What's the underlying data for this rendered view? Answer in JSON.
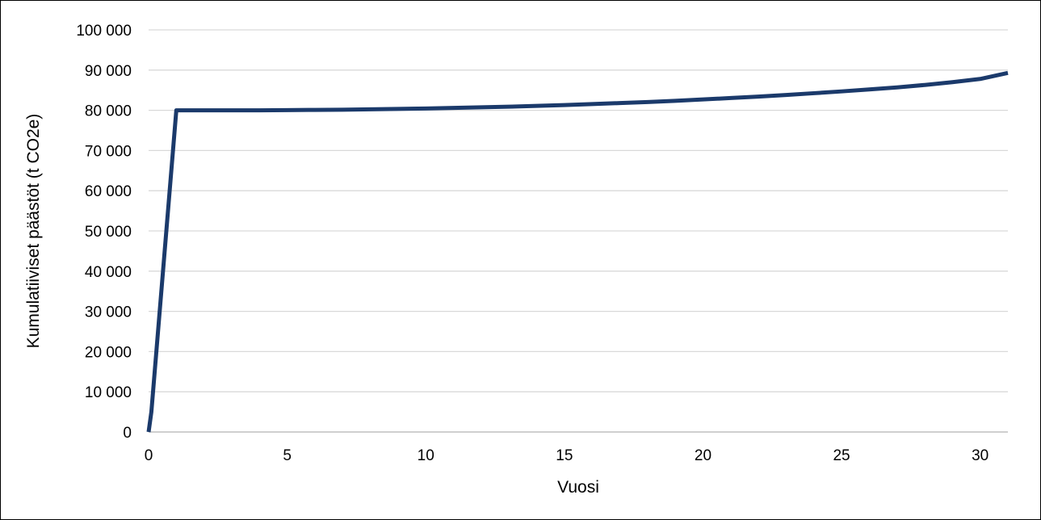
{
  "chart_data": {
    "type": "line",
    "title": "",
    "xlabel": "Vuosi",
    "ylabel": "Kumulatiiviset päästöt (t CO2e)",
    "xlim": [
      0,
      31
    ],
    "ylim": [
      0,
      100000
    ],
    "x_ticks": [
      0,
      5,
      10,
      15,
      20,
      25,
      30
    ],
    "x_tick_labels": [
      "0",
      "5",
      "10",
      "15",
      "20",
      "25",
      "30"
    ],
    "y_ticks": [
      0,
      10000,
      20000,
      30000,
      40000,
      50000,
      60000,
      70000,
      80000,
      90000,
      100000
    ],
    "y_tick_labels": [
      "0",
      "10 000",
      "20 000",
      "30 000",
      "40 000",
      "50 000",
      "60 000",
      "70 000",
      "80 000",
      "90 000",
      "100 000"
    ],
    "grid": true,
    "legend": false,
    "colors": {
      "line": "#1b3a6b",
      "grid": "#d9d9d9",
      "axis": "#bfbfbf"
    },
    "series": [
      {
        "x": [
          0,
          0.1,
          1,
          2,
          3,
          4,
          5,
          6,
          7,
          8,
          9,
          10,
          11,
          12,
          13,
          14,
          15,
          16,
          17,
          18,
          19,
          20,
          21,
          22,
          23,
          24,
          25,
          26,
          27,
          28,
          29,
          30,
          31
        ],
        "values": [
          0,
          5000,
          80000,
          80000,
          80000,
          80000,
          80050,
          80100,
          80150,
          80250,
          80350,
          80450,
          80600,
          80750,
          80900,
          81100,
          81300,
          81550,
          81800,
          82050,
          82350,
          82700,
          83050,
          83400,
          83800,
          84250,
          84700,
          85200,
          85700,
          86300,
          87000,
          87800,
          89300
        ]
      }
    ]
  }
}
